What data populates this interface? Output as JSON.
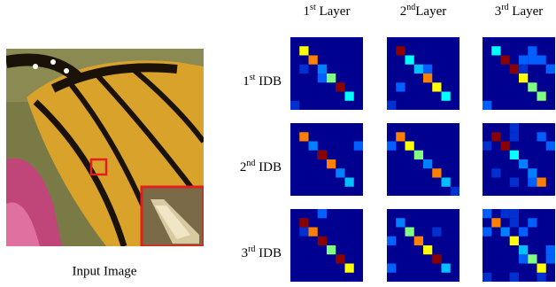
{
  "figure": {
    "columns": [
      {
        "number": "1",
        "suffix": "st",
        "text": " Layer"
      },
      {
        "number": "2",
        "suffix": "nd",
        "text": "Layer"
      },
      {
        "number": "3",
        "suffix": "rd",
        "text": " Layer"
      }
    ],
    "rows": [
      {
        "number": "1",
        "suffix": "st",
        "text": " IDB"
      },
      {
        "number": "2",
        "suffix": "nd",
        "text": " IDB"
      },
      {
        "number": "3",
        "suffix": "rd",
        "text": " IDB"
      }
    ],
    "caption": "Input Image"
  }
}
